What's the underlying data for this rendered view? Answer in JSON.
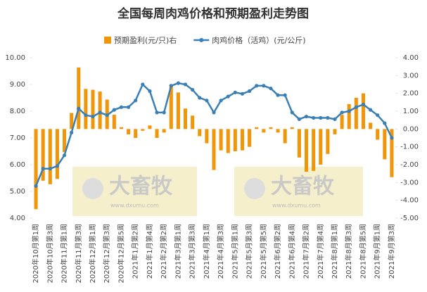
{
  "chart_data": {
    "type": "bar-line",
    "title": "全国每周肉鸡价格和预期盈利走势图",
    "categories": [
      "2020年10月第1周",
      null,
      "2020年10月第3周",
      null,
      "2020年11月第1周",
      null,
      "2020年11月第3周",
      null,
      "2020年12月第1周",
      null,
      "2020年12月第3周",
      null,
      "2020年12月第5周",
      null,
      "2021年1月第2周",
      null,
      "2021年1月第4周",
      null,
      "2021年2月第2周",
      null,
      "2021年3月第1周",
      null,
      "2021年3月第3周",
      null,
      "2021年4月第1周",
      null,
      "2021年4月第3周",
      null,
      "2021年5月第1周",
      null,
      "2021年5月第3周",
      null,
      "2021年5月第5周",
      null,
      "2021年6月第2周",
      null,
      "2021年6月第4周",
      null,
      "2021年7月第2周",
      null,
      "2021年7月第4周",
      null,
      "2021年8月第1周",
      null,
      "2021年8月第3周",
      null,
      "2021年8月第5周",
      null,
      "2021年9月第1周",
      null,
      "2021年9月第3周"
    ],
    "series": [
      {
        "name": "预期盈利(元/只)右",
        "type": "bar",
        "axis": "y2",
        "color": "#f0960a",
        "values": [
          -4.5,
          -2.9,
          -3.1,
          -2.8,
          -1.3,
          0.9,
          3.45,
          2.25,
          2.2,
          2.1,
          1.65,
          0.8,
          0.1,
          -0.3,
          -0.5,
          -0.1,
          0.2,
          -0.5,
          -0.2,
          2.5,
          2.05,
          1.15,
          0.75,
          -0.4,
          -0.8,
          -2.3,
          -1.2,
          -1.35,
          -1.25,
          -1.2,
          -1.0,
          0.1,
          -0.2,
          0.1,
          -0.2,
          -0.8,
          0.1,
          -1.6,
          -2.4,
          -2.35,
          -2.0,
          -1.4,
          -0.3,
          0.8,
          1.4,
          1.75,
          2.0,
          0.35,
          -0.6,
          -1.7,
          -2.7
        ]
      },
      {
        "name": "肉鸡价格（活鸡）(元/公斤)",
        "type": "line",
        "color": "#3a7fb5",
        "values": [
          5.2,
          5.85,
          5.85,
          5.95,
          6.35,
          7.2,
          8.1,
          7.85,
          7.8,
          7.95,
          7.85,
          8.05,
          8.15,
          8.15,
          8.4,
          9.0,
          8.75,
          7.95,
          7.95,
          8.95,
          9.05,
          9.0,
          8.8,
          8.5,
          8.4,
          7.95,
          8.4,
          8.55,
          8.7,
          8.65,
          8.75,
          8.95,
          8.95,
          8.85,
          8.6,
          8.6,
          7.95,
          7.7,
          7.8,
          7.75,
          7.75,
          7.75,
          7.7,
          7.95,
          8.0,
          8.15,
          8.25,
          8.05,
          7.85,
          7.55,
          7.0
        ]
      }
    ],
    "ylim": [
      4,
      10
    ],
    "yticks": [
      {
        "value": 4,
        "label": "4.00"
      },
      {
        "value": 5,
        "label": "5.00"
      },
      {
        "value": 6,
        "label": "6.00"
      },
      {
        "value": 7,
        "label": "7.00"
      },
      {
        "value": 8,
        "label": "8.00"
      },
      {
        "value": 9,
        "label": "9.00"
      },
      {
        "value": 10,
        "label": "10.00"
      }
    ],
    "y2lim": [
      -5,
      4
    ],
    "y2ticks": [
      {
        "value": -5,
        "label": "-5.00"
      },
      {
        "value": -4,
        "label": "-4.00"
      },
      {
        "value": -3,
        "label": "-3.00"
      },
      {
        "value": -2,
        "label": "-2.00"
      },
      {
        "value": -1,
        "label": "-1.00"
      },
      {
        "value": 0,
        "label": "0.00"
      },
      {
        "value": 1,
        "label": "1.00"
      },
      {
        "value": 2,
        "label": "2.00"
      },
      {
        "value": 3,
        "label": "3.00"
      },
      {
        "value": 4,
        "label": "4.00"
      }
    ],
    "watermark": {
      "brand": "大畜牧",
      "url": "www.dxumu.com"
    }
  }
}
